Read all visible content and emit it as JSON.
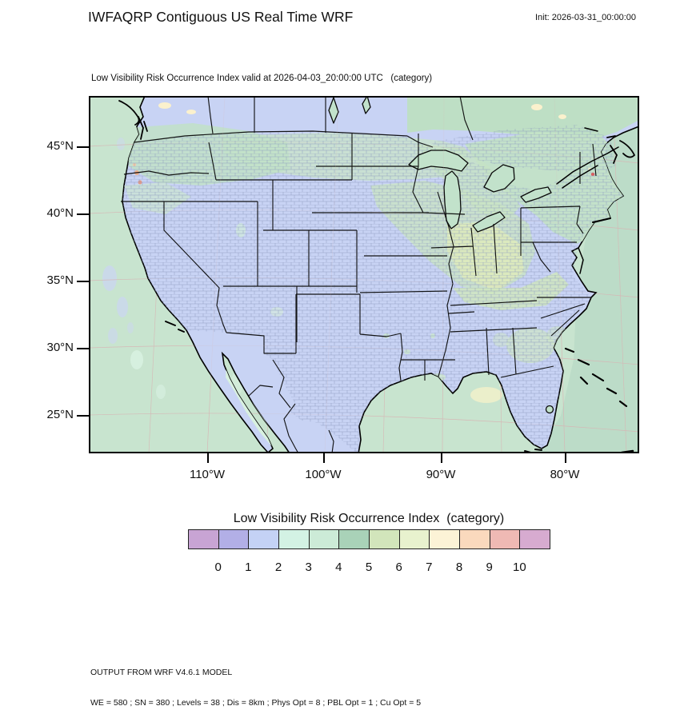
{
  "header": {
    "title": "IWFAQRP Contiguous US Real Time WRF",
    "init_label": "Init: 2026-03-31_00:00:00"
  },
  "map": {
    "subtitle": "Low Visibility Risk Occurrence Index valid at 2026-04-03_20:00:00 UTC   (category)",
    "y_ticks": [
      "45°N",
      "40°N",
      "35°N",
      "30°N",
      "25°N"
    ],
    "x_ticks": [
      "110°W",
      "100°W",
      "90°W",
      "80°W"
    ]
  },
  "colorbar": {
    "title": "Low Visibility Risk Occurrence Index  (category)",
    "tick_labels": [
      "0",
      "1",
      "2",
      "3",
      "4",
      "5",
      "6",
      "7",
      "8",
      "9",
      "10"
    ],
    "colors": [
      "#C8A4D4",
      "#B2AFE6",
      "#C4D2F5",
      "#D3F2E4",
      "#CCEBD7",
      "#A9D2B8",
      "#D2E5BB",
      "#E8F2CE",
      "#FCF3D6",
      "#FAD9BD",
      "#EFB9B4",
      "#D7ABD0"
    ]
  },
  "footer": {
    "line1": "OUTPUT FROM WRF V4.6.1 MODEL",
    "line2": "WE = 580 ; SN = 380 ; Levels = 38 ; Dis = 8km ; Phys Opt = 8 ; PBL Opt = 1 ; Cu Opt = 5"
  },
  "colors": {
    "land_category_1_2": "#C8D3F4",
    "background_category_3_4": "#C8E4CF",
    "atlantic_category_4": "#BCDCC8",
    "county_line": "#8D9CC0"
  },
  "chart_data": {
    "type": "heatmap",
    "title": "Low Visibility Risk Occurrence Index valid at 2026-04-03_20:00:00 UTC (category)",
    "legend_title": "Low Visibility Risk Occurrence Index  (category)",
    "categories": [
      0,
      1,
      2,
      3,
      4,
      5,
      6,
      7,
      8,
      9,
      10
    ],
    "x_ticks": [
      "110°W",
      "100°W",
      "90°W",
      "80°W"
    ],
    "y_ticks": [
      "45°N",
      "40°N",
      "35°N",
      "30°N",
      "25°N"
    ],
    "legend_position": "bottom",
    "regions": [
      {
        "area": "contiguous US interior (most counties)",
        "category_range": "1-2"
      },
      {
        "area": "oceans, Canada, Mexico background",
        "category_range": "3-4"
      },
      {
        "area": "Pacific Northwest / northern Rockies",
        "category_range": "3-5"
      },
      {
        "area": "northern plains (MT, ND, MN)",
        "category_range": "3-5"
      },
      {
        "area": "upper Midwest and Ohio Valley (IA, IL, IN, OH, KY)",
        "category_range": "4-6"
      },
      {
        "area": "New England, New York, southern Ontario/Quebec",
        "category_range": "3-5"
      },
      {
        "area": "scattered Georgia / Gulf near Florida",
        "category_range": "5-7"
      },
      {
        "area": "Washington coast spots",
        "category_range": "8-9"
      }
    ]
  }
}
